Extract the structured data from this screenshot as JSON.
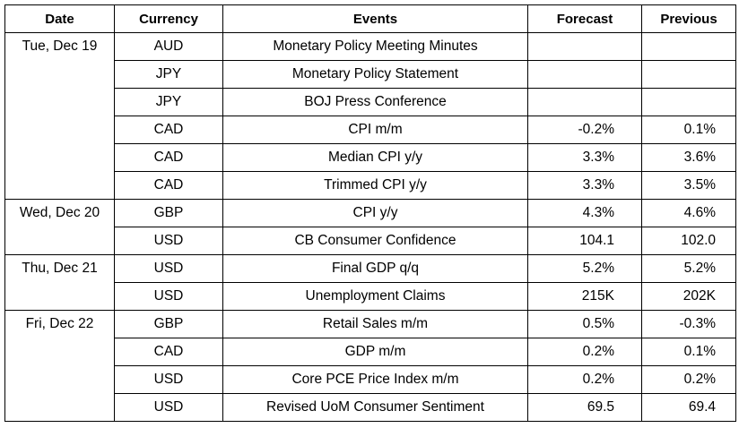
{
  "headers": [
    "Date",
    "Currency",
    "Events",
    "Forecast",
    "Previous"
  ],
  "rows": [
    {
      "date": "Tue, Dec 19",
      "currency": "AUD",
      "event": "Monetary Policy Meeting Minutes",
      "forecast": "",
      "previous": ""
    },
    {
      "date": "",
      "currency": "JPY",
      "event": "Monetary Policy Statement",
      "forecast": "",
      "previous": ""
    },
    {
      "date": "",
      "currency": "JPY",
      "event": "BOJ Press Conference",
      "forecast": "",
      "previous": ""
    },
    {
      "date": "",
      "currency": "CAD",
      "event": "CPI m/m",
      "forecast": "-0.2%",
      "previous": "0.1%"
    },
    {
      "date": "",
      "currency": "CAD",
      "event": "Median CPI y/y",
      "forecast": "3.3%",
      "previous": "3.6%"
    },
    {
      "date": "",
      "currency": "CAD",
      "event": "Trimmed CPI y/y",
      "forecast": "3.3%",
      "previous": "3.5%"
    },
    {
      "date": "Wed, Dec 20",
      "currency": "GBP",
      "event": "CPI y/y",
      "forecast": "4.3%",
      "previous": "4.6%"
    },
    {
      "date": "",
      "currency": "USD",
      "event": "CB Consumer Confidence",
      "forecast": "104.1",
      "previous": "102.0"
    },
    {
      "date": "Thu, Dec 21",
      "currency": "USD",
      "event": "Final GDP q/q",
      "forecast": "5.2%",
      "previous": "5.2%"
    },
    {
      "date": "",
      "currency": "USD",
      "event": "Unemployment Claims",
      "forecast": "215K",
      "previous": "202K"
    },
    {
      "date": "Fri, Dec 22",
      "currency": "GBP",
      "event": "Retail Sales m/m",
      "forecast": "0.5%",
      "previous": "-0.3%"
    },
    {
      "date": "",
      "currency": "CAD",
      "event": "GDP m/m",
      "forecast": "0.2%",
      "previous": "0.1%"
    },
    {
      "date": "",
      "currency": "USD",
      "event": "Core PCE Price Index m/m",
      "forecast": "0.2%",
      "previous": "0.2%"
    },
    {
      "date": "",
      "currency": "USD",
      "event": "Revised UoM Consumer Sentiment",
      "forecast": "69.5",
      "previous": "69.4"
    }
  ]
}
